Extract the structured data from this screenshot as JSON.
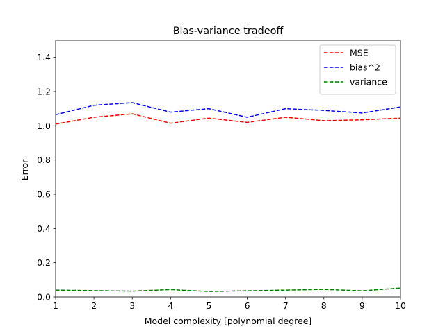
{
  "chart_data": {
    "type": "line",
    "title": "Bias-variance tradeoff",
    "xlabel": "Model complexity [polynomial degree]",
    "ylabel": "Error",
    "x": [
      1,
      2,
      3,
      4,
      5,
      6,
      7,
      8,
      9,
      10
    ],
    "xlim": [
      1,
      10
    ],
    "ylim": [
      0.0,
      1.5
    ],
    "xticks": [
      "1",
      "2",
      "3",
      "4",
      "5",
      "6",
      "7",
      "8",
      "9",
      "10"
    ],
    "yticks": [
      {
        "value": 0.0,
        "label": "0.0"
      },
      {
        "value": 0.2,
        "label": "0.2"
      },
      {
        "value": 0.4,
        "label": "0.4"
      },
      {
        "value": 0.6,
        "label": "0.6"
      },
      {
        "value": 0.8,
        "label": "0.8"
      },
      {
        "value": 1.0,
        "label": "1.0"
      },
      {
        "value": 1.2,
        "label": "1.2"
      },
      {
        "value": 1.4,
        "label": "1.4"
      }
    ],
    "grid": false,
    "legend_position": "top-right",
    "line_style": "dashed",
    "series": [
      {
        "name": "MSE",
        "color": "#ff0000",
        "values": [
          1.01,
          1.05,
          1.07,
          1.015,
          1.045,
          1.02,
          1.05,
          1.03,
          1.035,
          1.045
        ]
      },
      {
        "name": "bias^2",
        "color": "#0000ff",
        "values": [
          1.065,
          1.12,
          1.135,
          1.08,
          1.1,
          1.05,
          1.1,
          1.09,
          1.075,
          1.11
        ]
      },
      {
        "name": "variance",
        "color": "#008000",
        "values": [
          0.04,
          0.037,
          0.034,
          0.043,
          0.032,
          0.036,
          0.04,
          0.044,
          0.036,
          0.052
        ]
      }
    ]
  }
}
